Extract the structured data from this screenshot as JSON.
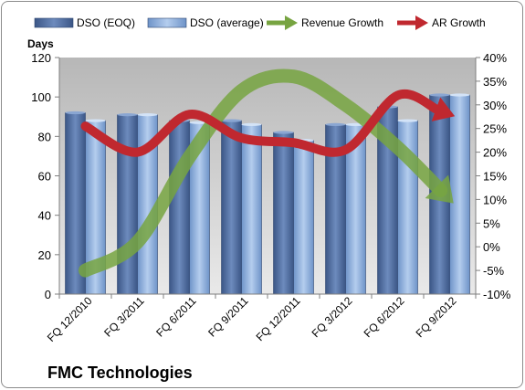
{
  "caption": "FMC Technologies",
  "chart_data": {
    "type": "bar",
    "categories": [
      "FQ 12/2010",
      "FQ 3/2011",
      "FQ 6/2011",
      "FQ 9/2011",
      "FQ 12/2011",
      "FQ 3/2012",
      "FQ 6/2012",
      "FQ 9/2012"
    ],
    "series": [
      {
        "name": "DSO (EOQ)",
        "type": "bar",
        "axis": "left",
        "color": "#4f6fa3",
        "values": [
          92,
          91,
          88,
          88,
          82,
          86,
          95,
          101
        ]
      },
      {
        "name": "DSO (average)",
        "type": "bar",
        "axis": "left",
        "color": "#8fb4e3",
        "values": [
          88,
          91,
          87,
          86,
          78,
          86,
          88,
          101
        ]
      },
      {
        "name": "Revenue Growth",
        "type": "arrow",
        "axis": "right",
        "color": "#77a441",
        "values": [
          -0.05,
          0.01,
          0.19,
          0.33,
          0.36,
          0.3,
          0.21,
          0.1
        ]
      },
      {
        "name": "AR Growth",
        "type": "arrow",
        "axis": "right",
        "color": "#c0282f",
        "values": [
          0.255,
          0.2,
          0.28,
          0.23,
          0.22,
          0.205,
          0.32,
          0.28
        ]
      }
    ],
    "ylabel": "Days",
    "ylim": [
      0,
      120
    ],
    "yticks": [
      0,
      20,
      40,
      60,
      80,
      100,
      120
    ],
    "y2lim": [
      -0.1,
      0.4
    ],
    "y2ticks": [
      "-10%",
      "-5%",
      "0%",
      "5%",
      "10%",
      "15%",
      "20%",
      "25%",
      "30%",
      "35%",
      "40%"
    ],
    "legend_position": "top",
    "grid": false,
    "plot_background": "#c0c0c0"
  }
}
